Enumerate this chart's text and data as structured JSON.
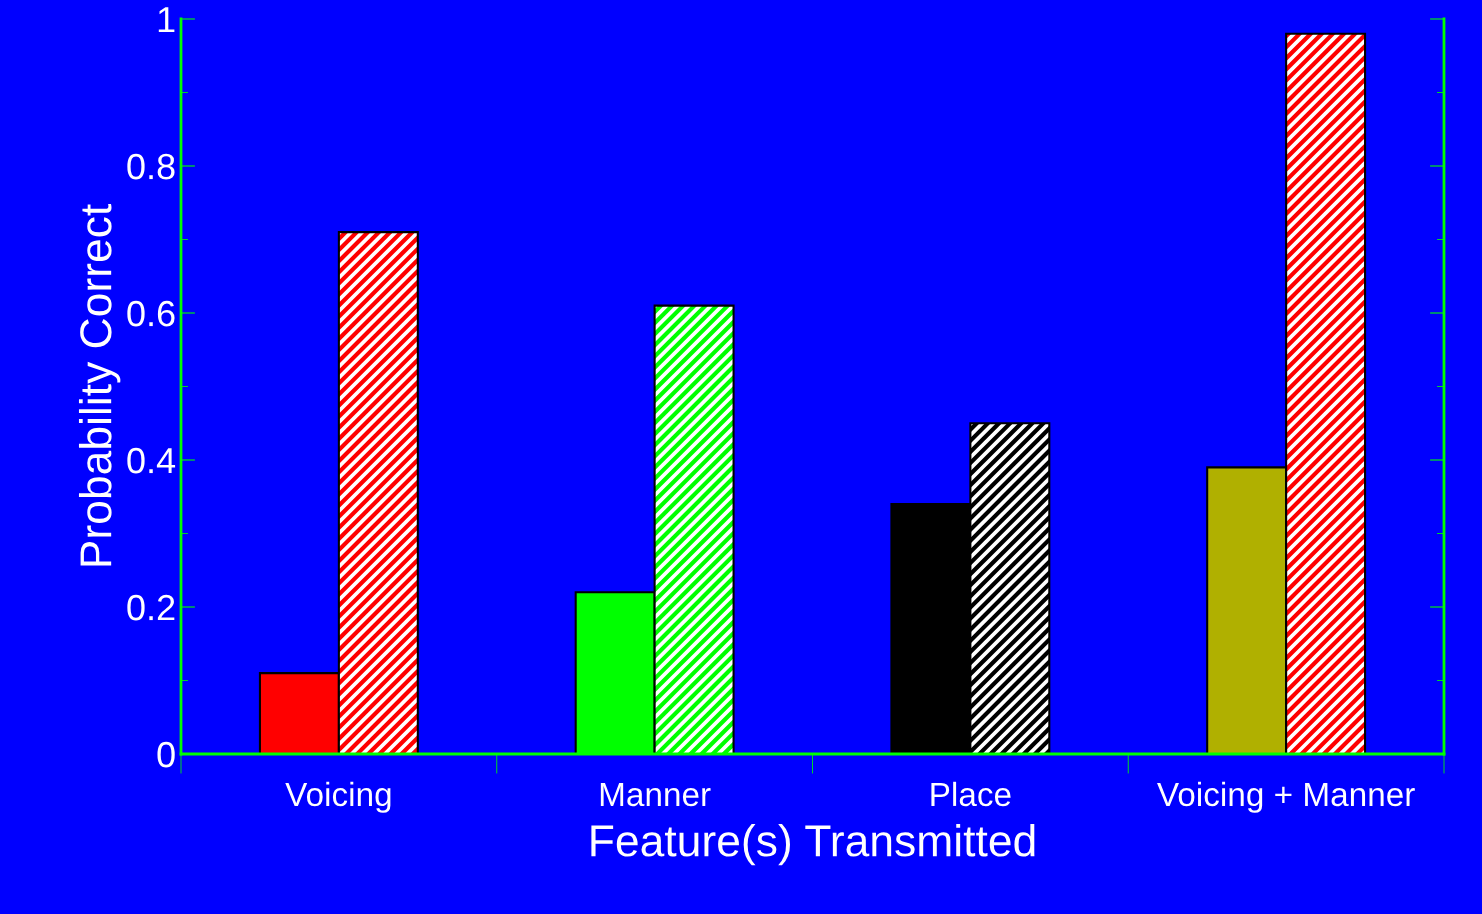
{
  "chart_data": {
    "type": "bar",
    "xlabel": "Feature(s) Transmitted",
    "ylabel": "Probability Correct",
    "categories": [
      "Voicing",
      "Manner",
      "Place",
      "Voicing + Manner"
    ],
    "series": [
      {
        "colors": [
          "#ff0000",
          "#00ff00",
          "#000000",
          "#b0b000"
        ],
        "values": [
          0.11,
          0.22,
          0.34,
          0.39
        ]
      },
      {
        "colors": [
          "#ff0000",
          "#00ff00",
          "#000000",
          "#ff0000"
        ],
        "values": [
          0.71,
          0.61,
          0.45,
          0.98
        ]
      }
    ],
    "ylim": [
      0,
      1
    ],
    "yticks": [
      0,
      0.2,
      0.4,
      0.6,
      0.8,
      1
    ],
    "grid": false,
    "legend": false
  }
}
